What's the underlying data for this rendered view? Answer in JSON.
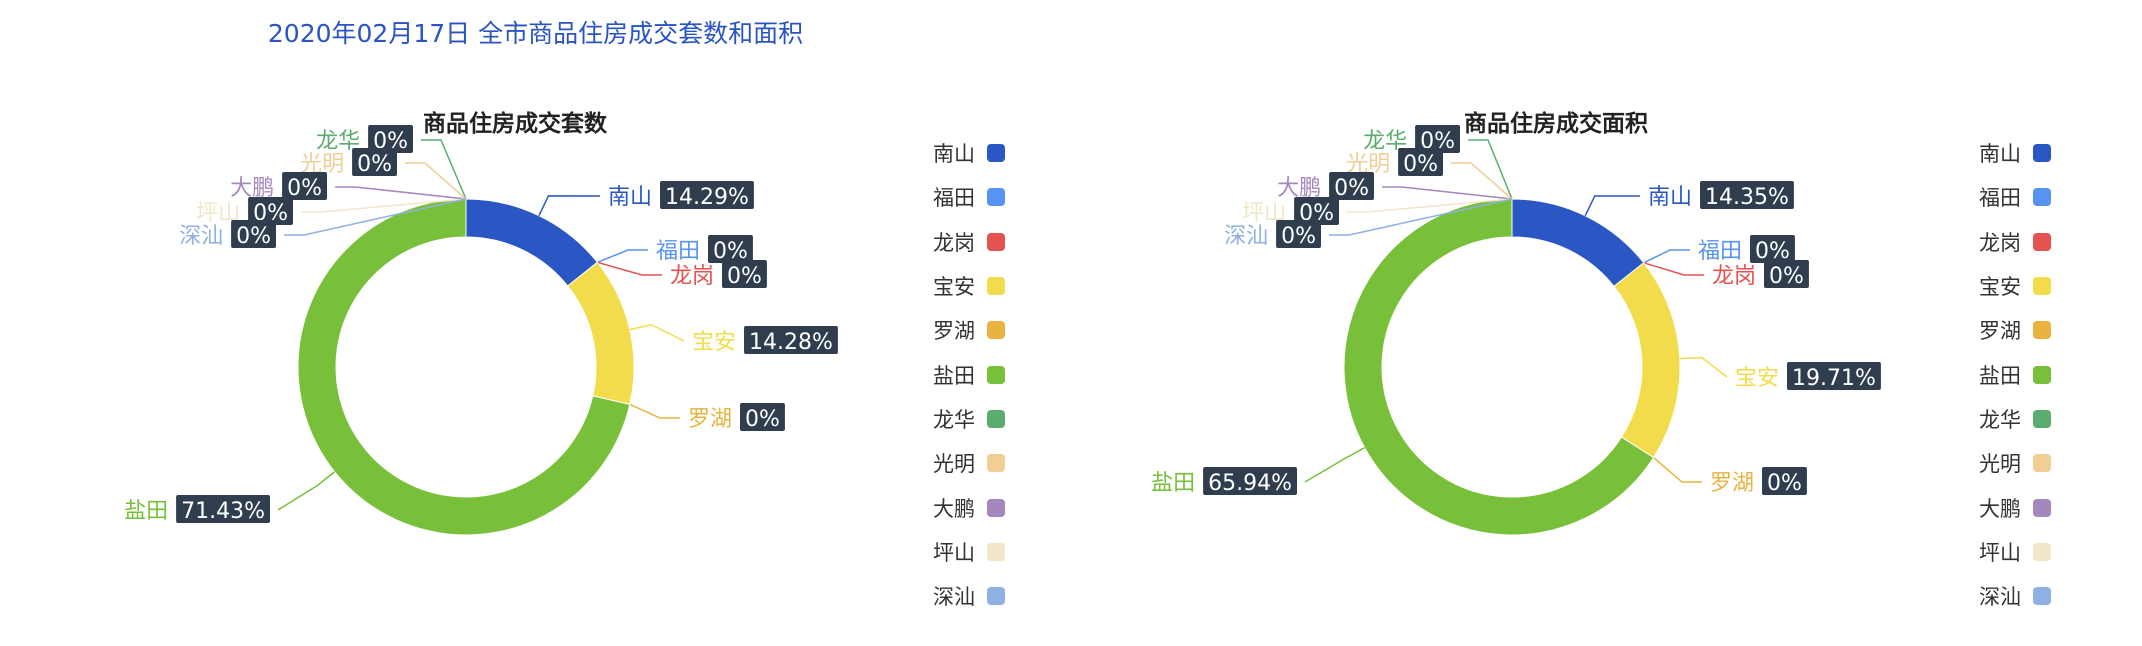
{
  "page_title": "2020年02月17日 全市商品住房成交套数和面积",
  "legend_items": [
    {
      "name": "南山",
      "color": "#2a57c3"
    },
    {
      "name": "福田",
      "color": "#5793f3"
    },
    {
      "name": "龙岗",
      "color": "#e4534f"
    },
    {
      "name": "宝安",
      "color": "#f2dc4b"
    },
    {
      "name": "罗湖",
      "color": "#e8b33e"
    },
    {
      "name": "盐田",
      "color": "#78c03a"
    },
    {
      "name": "龙华",
      "color": "#5aad6f"
    },
    {
      "name": "光明",
      "color": "#f1cf94"
    },
    {
      "name": "大鹏",
      "color": "#a488bd"
    },
    {
      "name": "坪山",
      "color": "#f2e6c9"
    },
    {
      "name": "深汕",
      "color": "#8fb0e3"
    }
  ],
  "chart_data": [
    {
      "type": "pie",
      "title": "商品住房成交套数",
      "slices": [
        {
          "name": "南山",
          "percent_label": "14.29%",
          "value": 14.29
        },
        {
          "name": "福田",
          "percent_label": "0%",
          "value": 0
        },
        {
          "name": "龙岗",
          "percent_label": "0%",
          "value": 0
        },
        {
          "name": "宝安",
          "percent_label": "14.28%",
          "value": 14.28
        },
        {
          "name": "罗湖",
          "percent_label": "0%",
          "value": 0
        },
        {
          "name": "盐田",
          "percent_label": "71.43%",
          "value": 71.43
        },
        {
          "name": "龙华",
          "percent_label": "0%",
          "value": 0
        },
        {
          "name": "光明",
          "percent_label": "0%",
          "value": 0
        },
        {
          "name": "大鹏",
          "percent_label": "0%",
          "value": 0
        },
        {
          "name": "坪山",
          "percent_label": "0%",
          "value": 0
        },
        {
          "name": "深汕",
          "percent_label": "0%",
          "value": 0
        }
      ]
    },
    {
      "type": "pie",
      "title": "商品住房成交面积",
      "slices": [
        {
          "name": "南山",
          "percent_label": "14.35%",
          "value": 14.35
        },
        {
          "name": "福田",
          "percent_label": "0%",
          "value": 0
        },
        {
          "name": "龙岗",
          "percent_label": "0%",
          "value": 0
        },
        {
          "name": "宝安",
          "percent_label": "19.71%",
          "value": 19.71
        },
        {
          "name": "罗湖",
          "percent_label": "0%",
          "value": 0
        },
        {
          "name": "盐田",
          "percent_label": "65.94%",
          "value": 65.94
        },
        {
          "name": "龙华",
          "percent_label": "0%",
          "value": 0
        },
        {
          "name": "光明",
          "percent_label": "0%",
          "value": 0
        },
        {
          "name": "大鹏",
          "percent_label": "0%",
          "value": 0
        },
        {
          "name": "坪山",
          "percent_label": "0%",
          "value": 0
        },
        {
          "name": "深汕",
          "percent_label": "0%",
          "value": 0
        }
      ]
    }
  ]
}
